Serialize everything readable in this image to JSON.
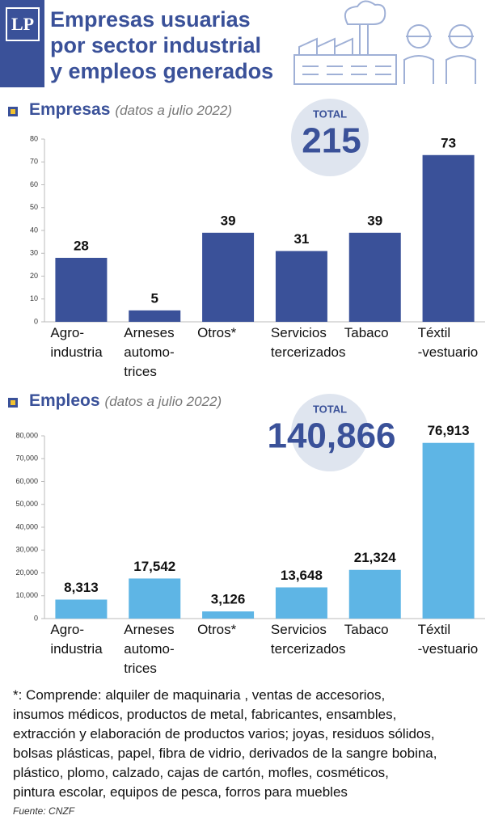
{
  "header": {
    "logo": "LP",
    "title": "Empresas usuarias\npor sector industrial\ny empleos generados"
  },
  "chart_data": [
    {
      "type": "bar",
      "title": "Empresas",
      "subtitle": "(datos a julio 2022)",
      "total": {
        "label": "TOTAL",
        "value": 215
      },
      "categories": [
        "Agro-\nindustria",
        "Arneses\nautomo-\ntrices",
        "Otros*",
        "Servicios\ntercerizados",
        "Tabaco",
        "Téxtil\n-vestuario"
      ],
      "values": [
        28,
        5,
        39,
        31,
        39,
        73
      ],
      "color": "#3a5199",
      "ylim": [
        0,
        80
      ],
      "yticks": [
        0,
        10,
        20,
        30,
        40,
        50,
        60,
        70,
        80
      ],
      "grid": false
    },
    {
      "type": "bar",
      "title": "Empleos",
      "subtitle": "(datos a julio 2022)",
      "total": {
        "label": "TOTAL",
        "value": 140866,
        "value_label": "140,866"
      },
      "categories": [
        "Agro-\nindustria",
        "Arneses\nautomo-\ntrices",
        "Otros*",
        "Servicios\ntercerizados",
        "Tabaco",
        "Téxtil\n-vestuario"
      ],
      "values": [
        8313,
        17542,
        3126,
        13648,
        21324,
        76913
      ],
      "value_labels": [
        "8,313",
        "17,542",
        "3,126",
        "13,648",
        "21,324",
        "76,913"
      ],
      "color": "#5eb5e5",
      "ylim": [
        0,
        80000
      ],
      "yticks": [
        0,
        {
          "value": 10000,
          "label": "10,000"
        },
        {
          "value": 20000,
          "label": "20,000"
        },
        {
          "value": 30000,
          "label": "30,000"
        },
        {
          "value": 40000,
          "label": "40,000"
        },
        {
          "value": 50000,
          "label": "50,000"
        },
        {
          "value": 60000,
          "label": "60,000"
        },
        {
          "value": 70000,
          "label": "70,000"
        },
        {
          "value": 80000,
          "label": "80,000"
        }
      ],
      "grid": false
    }
  ],
  "footnote": "*: Comprende: alquiler de maquinaria , ventas de accesorios,\ninsumos médicos, productos de metal, fabricantes, ensambles,\nextracción y elaboración de productos varios; joyas, residuos sólidos,\nbolsas plásticas, papel, fibra de vidrio, derivados de la sangre bobina,\nplástico, plomo, calzado, cajas de cartón, mofles, cosméticos,\npintura escolar, equipos de pesca, forros para muebles",
  "source": "Fuente: CNZF"
}
